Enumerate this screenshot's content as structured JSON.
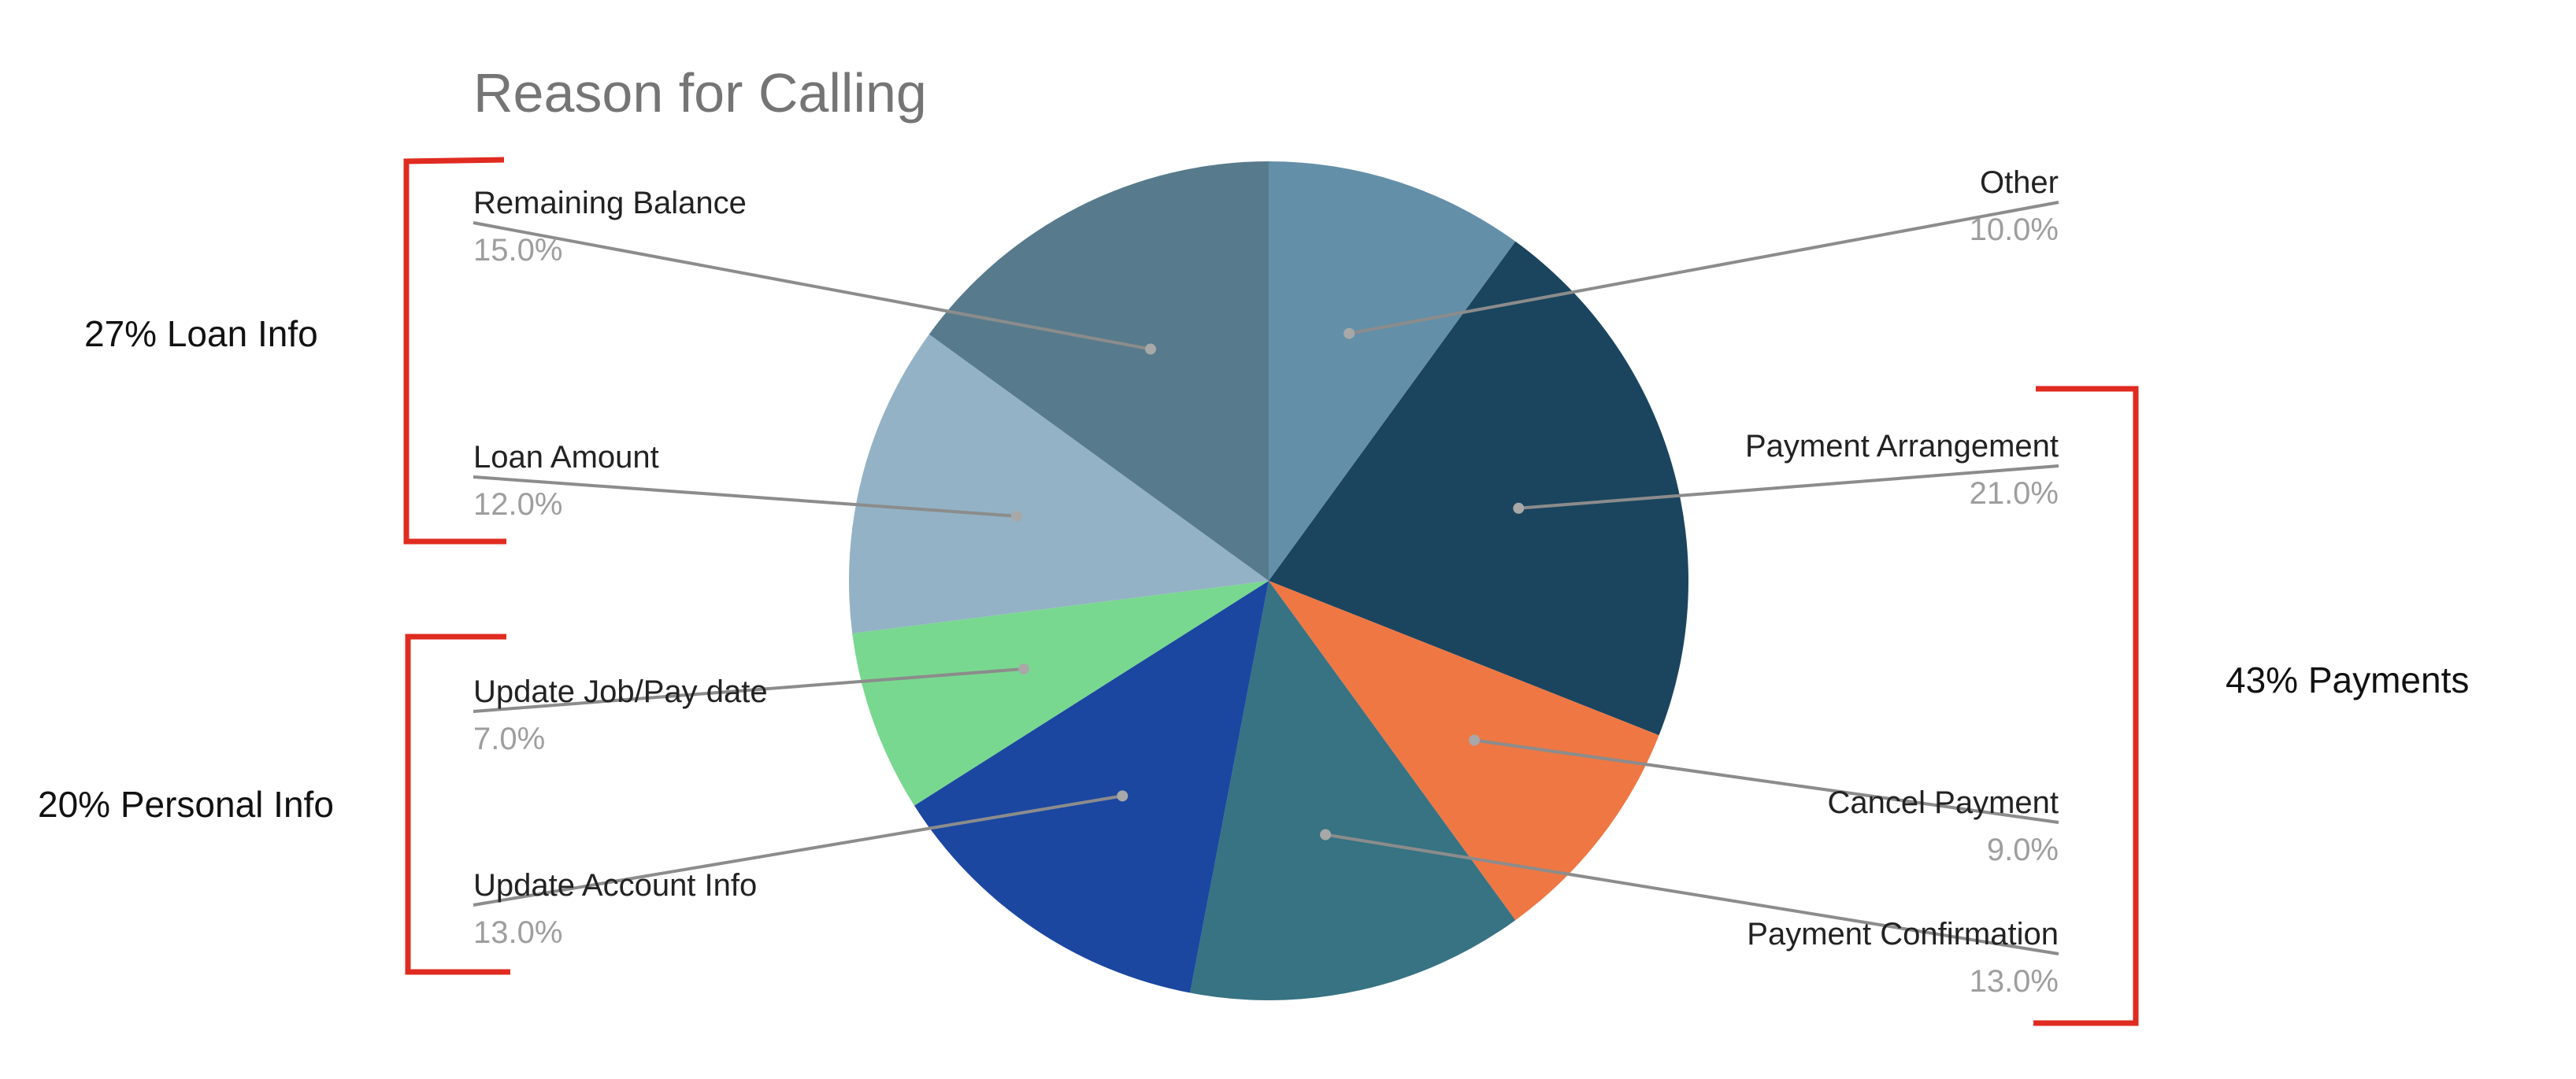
{
  "chart_data": {
    "type": "pie",
    "title": "Reason for Calling",
    "slices": [
      {
        "label": "Other",
        "value": 10.0,
        "display": "10.0%",
        "color": "#648fa8"
      },
      {
        "label": "Payment Arrangement",
        "value": 21.0,
        "display": "21.0%",
        "color": "#1b455e"
      },
      {
        "label": "Cancel Payment",
        "value": 9.0,
        "display": "9.0%",
        "color": "#ef7744"
      },
      {
        "label": "Payment Confirmation",
        "value": 13.0,
        "display": "13.0%",
        "color": "#377382"
      },
      {
        "label": "Update Account Info",
        "value": 13.0,
        "display": "13.0%",
        "color": "#1b47a1"
      },
      {
        "label": "Update Job/Pay date",
        "value": 7.0,
        "display": "7.0%",
        "color": "#79d88f"
      },
      {
        "label": "Loan Amount",
        "value": 12.0,
        "display": "12.0%",
        "color": "#93b2c5"
      },
      {
        "label": "Remaining Balance",
        "value": 15.0,
        "display": "15.0%",
        "color": "#577b8c"
      }
    ],
    "start_angle": "12 o'clock",
    "direction": "clockwise",
    "legend": "none"
  },
  "annotations": {
    "bracket_color": "#e02b20",
    "groups": [
      {
        "text": "27% Loan Info",
        "members": [
          "Remaining Balance",
          "Loan Amount"
        ]
      },
      {
        "text": "20% Personal Info",
        "members": [
          "Update Job/Pay date",
          "Update Account Info"
        ]
      },
      {
        "text": "43% Payments",
        "members": [
          "Payment Arrangement",
          "Cancel Payment",
          "Payment Confirmation"
        ]
      }
    ]
  }
}
